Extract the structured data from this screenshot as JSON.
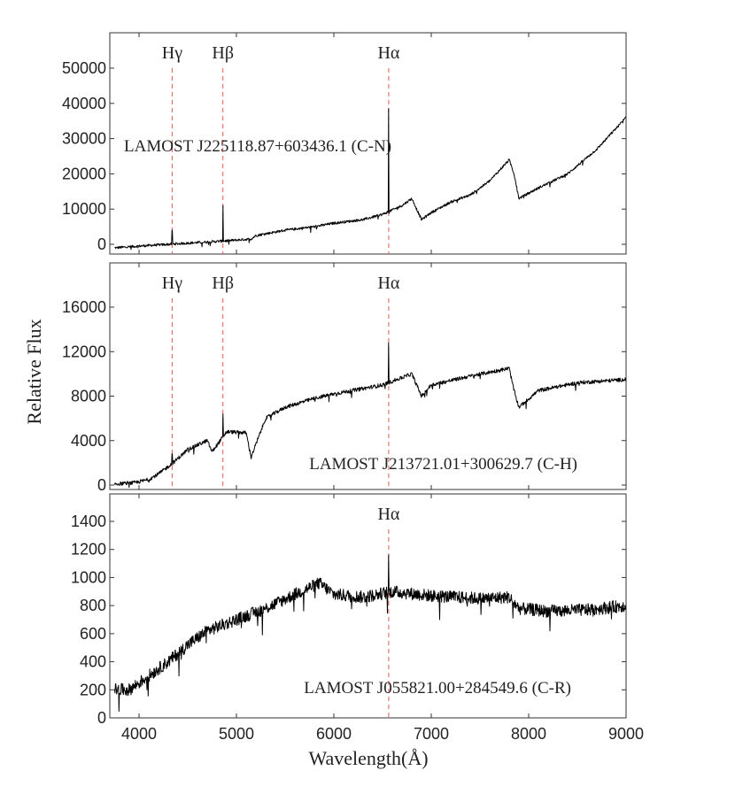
{
  "figure": {
    "ylabel": "Relative Flux",
    "xlabel": "Wavelength(Å)"
  },
  "chart_data": [
    {
      "type": "line",
      "object": "LAMOST J225118.87+603436.1 (C-N)",
      "xlim": [
        3700,
        9000
      ],
      "ylim": [
        -2000,
        60000
      ],
      "yticks": [
        0,
        10000,
        20000,
        30000,
        40000,
        50000
      ],
      "xticks": [
        4000,
        5000,
        6000,
        7000,
        8000,
        9000
      ],
      "emission_lines": [
        {
          "label": "Hγ",
          "wavelength": 4340,
          "peak": 4000
        },
        {
          "label": "Hβ",
          "wavelength": 4861,
          "peak": 11000
        },
        {
          "label": "Hα",
          "wavelength": 6563,
          "peak": 38500
        }
      ],
      "noise": 350,
      "x": [
        3750,
        4000,
        4300,
        4600,
        4900,
        5150,
        5200,
        5500,
        5800,
        6000,
        6300,
        6500,
        6700,
        6800,
        6900,
        7000,
        7200,
        7400,
        7600,
        7800,
        7850,
        7900,
        8100,
        8400,
        8700,
        9000
      ],
      "y": [
        -1000,
        -500,
        0,
        500,
        1000,
        1500,
        2500,
        4000,
        5000,
        6000,
        7000,
        8500,
        11000,
        13000,
        7000,
        9000,
        12000,
        14000,
        18000,
        24000,
        20000,
        13000,
        16000,
        20000,
        27000,
        36000
      ]
    },
    {
      "type": "line",
      "object": "LAMOST J213721.01+300629.7 (C-H)",
      "xlim": [
        3700,
        9000
      ],
      "ylim": [
        0,
        19500
      ],
      "yticks": [
        0,
        4000,
        8000,
        12000,
        16000
      ],
      "xticks": [
        4000,
        5000,
        6000,
        7000,
        8000,
        9000
      ],
      "emission_lines": [
        {
          "label": "Hγ",
          "wavelength": 4340,
          "peak": 2800
        },
        {
          "label": "Hβ",
          "wavelength": 4861,
          "peak": 6400
        },
        {
          "label": "Hα",
          "wavelength": 6563,
          "peak": 12800
        }
      ],
      "noise": 170,
      "x": [
        3750,
        3950,
        4100,
        4200,
        4350,
        4500,
        4700,
        4750,
        4900,
        5100,
        5150,
        5300,
        5500,
        5800,
        6000,
        6500,
        6800,
        6900,
        7000,
        7400,
        7800,
        7850,
        7900,
        8100,
        8500,
        9000
      ],
      "y": [
        100,
        200,
        500,
        1000,
        2000,
        3200,
        4000,
        3000,
        4800,
        4700,
        2500,
        6000,
        7000,
        7800,
        8200,
        9000,
        10000,
        8000,
        9000,
        9800,
        10500,
        8500,
        7000,
        8500,
        9200,
        9500
      ]
    },
    {
      "type": "line",
      "object": "LAMOST J055821.00+284549.6 (C-R)",
      "xlim": [
        3700,
        9000
      ],
      "ylim": [
        0,
        1500
      ],
      "yticks": [
        0,
        200,
        400,
        600,
        800,
        1000,
        1200,
        1400
      ],
      "xticks": [
        4000,
        5000,
        6000,
        7000,
        8000,
        9000
      ],
      "emission_lines": [
        {
          "label": "Hα",
          "wavelength": 6563,
          "peak": 1160
        }
      ],
      "noise": 45,
      "x": [
        3750,
        3900,
        4100,
        4300,
        4500,
        4700,
        5000,
        5300,
        5600,
        5850,
        6000,
        6300,
        6600,
        7000,
        7500,
        7800,
        7900,
        8200,
        8600,
        9000
      ],
      "y": [
        200,
        200,
        300,
        400,
        520,
        620,
        700,
        780,
        880,
        960,
        880,
        860,
        900,
        870,
        850,
        860,
        780,
        760,
        770,
        800
      ]
    }
  ]
}
